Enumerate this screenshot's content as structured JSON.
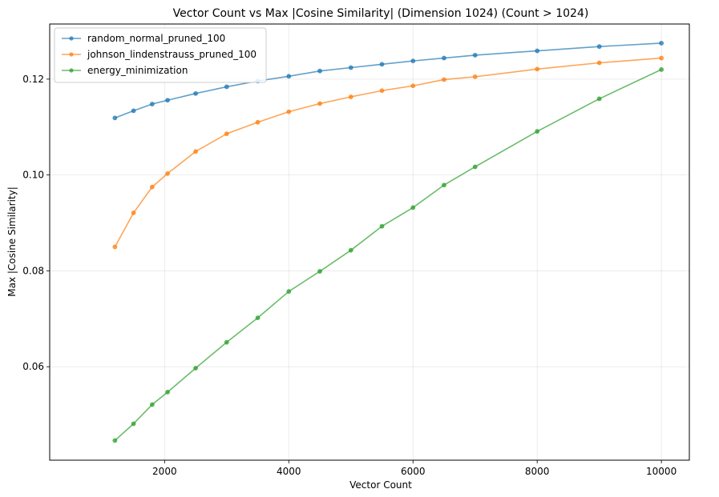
{
  "chart_data": {
    "type": "line",
    "title": "Vector Count vs Max |Cosine Similarity| (Dimension 1024) (Count > 1024)",
    "xlabel": "Vector Count",
    "ylabel": "Max |Cosine Similarity|",
    "xlim": [
      150,
      10450
    ],
    "ylim": [
      0.0405,
      0.1315
    ],
    "xticks": [
      2000,
      4000,
      6000,
      8000,
      10000
    ],
    "yticks": [
      0.06,
      0.08,
      0.1,
      0.12
    ],
    "xtick_labels": [
      "2000",
      "4000",
      "6000",
      "8000",
      "10000"
    ],
    "ytick_labels": [
      "0.06",
      "0.08",
      "0.10",
      "0.12"
    ],
    "grid": true,
    "legend_position": "top-left",
    "series": [
      {
        "name": "random_normal_pruned_100",
        "color": "#1f77b4",
        "x": [
          1200,
          1500,
          1800,
          2048,
          2500,
          3000,
          3500,
          4000,
          4500,
          5000,
          5500,
          6000,
          6500,
          7000,
          8000,
          9000,
          10000
        ],
        "y": [
          0.1119,
          0.1134,
          0.1148,
          0.1156,
          0.117,
          0.1184,
          0.1196,
          0.1206,
          0.1217,
          0.1224,
          0.1231,
          0.1238,
          0.1244,
          0.125,
          0.1259,
          0.1268,
          0.1275
        ]
      },
      {
        "name": "johnson_lindenstrauss_pruned_100",
        "color": "#ff7f0e",
        "x": [
          1200,
          1500,
          1800,
          2048,
          2500,
          3000,
          3500,
          4000,
          4500,
          5000,
          5500,
          6000,
          6500,
          7000,
          8000,
          9000,
          10000
        ],
        "y": [
          0.085,
          0.0921,
          0.0975,
          0.1003,
          0.1049,
          0.1086,
          0.111,
          0.1132,
          0.1149,
          0.1163,
          0.1176,
          0.1186,
          0.1199,
          0.1205,
          0.1221,
          0.1234,
          0.1244
        ]
      },
      {
        "name": "energy_minimization",
        "color": "#2ca02c",
        "x": [
          1200,
          1500,
          1800,
          2048,
          2500,
          3000,
          3500,
          4000,
          4500,
          5000,
          5500,
          6000,
          6500,
          7000,
          8000,
          9000,
          10000
        ],
        "y": [
          0.0446,
          0.0481,
          0.0521,
          0.0547,
          0.0597,
          0.0651,
          0.0702,
          0.0757,
          0.0799,
          0.0843,
          0.0893,
          0.0932,
          0.0979,
          0.1017,
          0.1091,
          0.1159,
          0.122
        ]
      }
    ]
  }
}
